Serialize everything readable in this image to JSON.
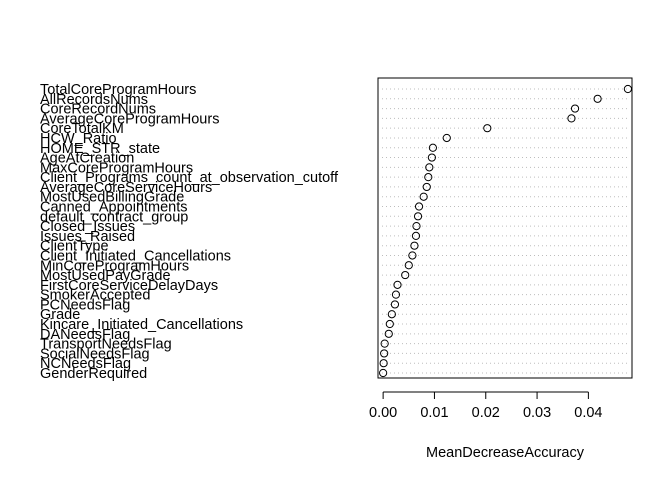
{
  "chart_data": {
    "type": "scatter",
    "title": "",
    "xlabel": "MeanDecreaseAccuracy",
    "ylabel": "",
    "xlim": [
      -0.001,
      0.0485
    ],
    "xticks": [
      0.0,
      0.01,
      0.02,
      0.03,
      0.04
    ],
    "xtick_labels": [
      "0.00",
      "0.01",
      "0.02",
      "0.03",
      "0.04"
    ],
    "grid": "dotted horizontal guide per variable",
    "legend": "none",
    "marker": "open-circle",
    "series": [
      {
        "points": [
          {
            "label": "TotalCoreProgramHours",
            "value": 0.0477
          },
          {
            "label": "AllRecordsNums",
            "value": 0.0418
          },
          {
            "label": "CoreRecordNums",
            "value": 0.0374
          },
          {
            "label": "AverageCoreProgramHours",
            "value": 0.0367
          },
          {
            "label": "CoreTotalKM",
            "value": 0.0203
          },
          {
            "label": "HCW_Ratio",
            "value": 0.0124
          },
          {
            "label": "HOME_STR_state",
            "value": 0.0097
          },
          {
            "label": "AgeAtCreation",
            "value": 0.0095
          },
          {
            "label": "MaxCoreProgramHours",
            "value": 0.009
          },
          {
            "label": "Client_Programs_count_at_observation_cutoff",
            "value": 0.0088
          },
          {
            "label": "AverageCoreServiceHours",
            "value": 0.0085
          },
          {
            "label": "MostUsedBillingGrade",
            "value": 0.0079
          },
          {
            "label": "Canned_Appointments",
            "value": 0.007
          },
          {
            "label": "default_contract_group",
            "value": 0.0068
          },
          {
            "label": "Closed_Issues",
            "value": 0.0065
          },
          {
            "label": "Issues_Raised",
            "value": 0.0064
          },
          {
            "label": "ClientType",
            "value": 0.0061
          },
          {
            "label": "Client_Initiated_Cancellations",
            "value": 0.0057
          },
          {
            "label": "MinCoreProgramHours",
            "value": 0.005
          },
          {
            "label": "MostUsedPayGrade",
            "value": 0.0043
          },
          {
            "label": "FirstCoreServiceDelayDays",
            "value": 0.0028
          },
          {
            "label": "SmokerAccepted",
            "value": 0.0025
          },
          {
            "label": "PCNeedsFlag",
            "value": 0.0023
          },
          {
            "label": "Grade",
            "value": 0.0017
          },
          {
            "label": "Kincare_Initiated_Cancellations",
            "value": 0.0013
          },
          {
            "label": "DANeedsFlag",
            "value": 0.0011
          },
          {
            "label": "TransportNeedsFlag",
            "value": 0.0003
          },
          {
            "label": "SocialNeedsFlag",
            "value": 0.0002
          },
          {
            "label": "NCNeedsFlag",
            "value": 0.0001
          },
          {
            "label": "GenderRequired",
            "value": 0.0
          }
        ]
      }
    ]
  }
}
